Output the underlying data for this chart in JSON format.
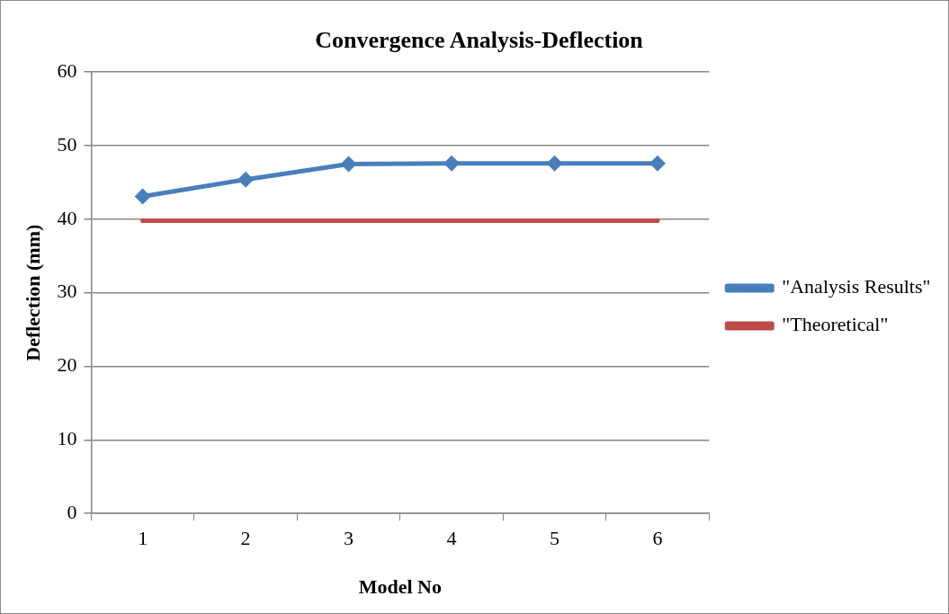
{
  "chart_data": {
    "type": "line",
    "title": "Convergence Analysis-Deflection",
    "xlabel": "Model No",
    "ylabel": "Deflection (mm)",
    "categories": [
      "1",
      "2",
      "3",
      "4",
      "5",
      "6"
    ],
    "series": [
      {
        "name": "\"Analysis Results\"",
        "color": "#4a7ebb",
        "values": [
          43.1,
          45.4,
          47.5,
          47.6,
          47.6,
          47.6
        ],
        "marker": "diamond"
      },
      {
        "name": "\"Theoretical\"",
        "color": "#be4b48",
        "values": [
          39.8,
          39.8,
          39.8,
          39.8,
          39.8,
          39.8
        ],
        "marker": "none"
      }
    ],
    "ylim": [
      0,
      60
    ],
    "yticks": [
      0,
      10,
      20,
      30,
      40,
      50,
      60
    ],
    "grid": "y",
    "legend": "right"
  }
}
